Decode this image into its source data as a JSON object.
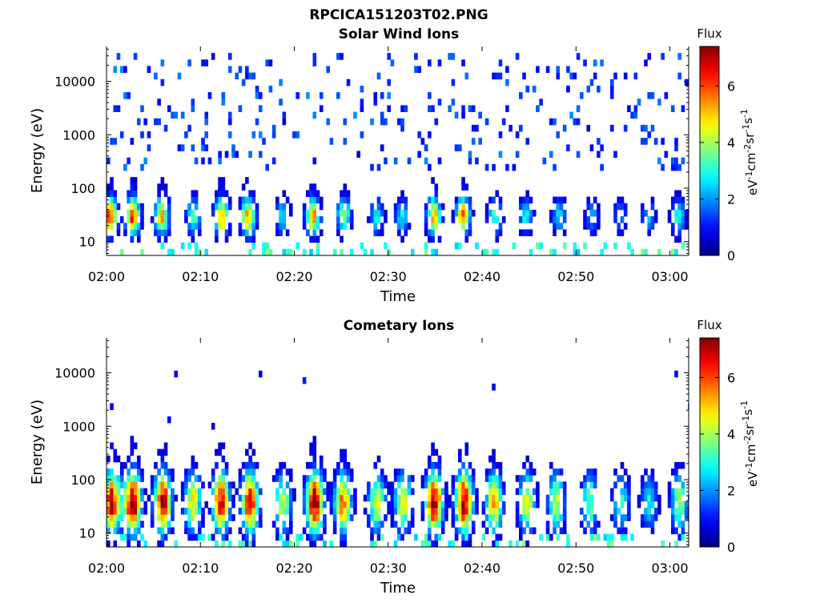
{
  "figure_title": "RPCICA151203T02.PNG",
  "chart_data": [
    {
      "type": "heatmap",
      "title": "Solar Wind Ions",
      "xlabel": "Time",
      "ylabel": "Energy (eV)",
      "x_ticks": [
        "02:00",
        "02:10",
        "02:20",
        "02:30",
        "02:40",
        "02:50",
        "03:00"
      ],
      "x_range_minutes": [
        0,
        62
      ],
      "y_scale": "log",
      "y_ticks": [
        10,
        100,
        1000,
        10000
      ],
      "y_tick_labels": [
        "10",
        "100",
        "1000",
        "10000"
      ],
      "ylim": [
        5.5,
        45000
      ],
      "colorbar": {
        "title": "Flux",
        "label_parts": [
          "eV",
          "-1",
          "cm",
          "-2",
          "sr",
          "-1",
          "s",
          "-1"
        ],
        "ticks": [
          "0",
          "2",
          "4",
          "6"
        ],
        "range": [
          0,
          7.4
        ],
        "colormap": "jet"
      },
      "bursts": [
        {
          "t": 0.2,
          "s": 1.1
        },
        {
          "t": 2.6,
          "s": 1.1
        },
        {
          "t": 5.7,
          "s": 0.9
        },
        {
          "t": 9.1,
          "s": 0.6
        },
        {
          "t": 12.1,
          "s": 1.0
        },
        {
          "t": 14.9,
          "s": 1.0
        },
        {
          "t": 18.6,
          "s": 0.5
        },
        {
          "t": 21.8,
          "s": 0.95
        },
        {
          "t": 25.1,
          "s": 0.7
        },
        {
          "t": 28.6,
          "s": 0.5
        },
        {
          "t": 31.3,
          "s": 0.5
        },
        {
          "t": 34.7,
          "s": 0.95
        },
        {
          "t": 37.8,
          "s": 1.0
        },
        {
          "t": 41.2,
          "s": 0.6
        },
        {
          "t": 44.5,
          "s": 0.5
        },
        {
          "t": 48.0,
          "s": 0.45
        },
        {
          "t": 51.5,
          "s": 0.4
        },
        {
          "t": 54.5,
          "s": 0.35
        },
        {
          "t": 57.5,
          "s": 0.4
        },
        {
          "t": 60.7,
          "s": 0.55
        }
      ],
      "background_noise": {
        "level": 1.2,
        "density": 0.14,
        "energy_range": [
          200,
          30000
        ]
      }
    },
    {
      "type": "heatmap",
      "title": "Cometary Ions",
      "xlabel": "Time",
      "ylabel": "Energy (eV)",
      "x_ticks": [
        "02:00",
        "02:10",
        "02:20",
        "02:30",
        "02:40",
        "02:50",
        "03:00"
      ],
      "x_range_minutes": [
        0,
        62
      ],
      "y_scale": "log",
      "y_ticks": [
        10,
        100,
        1000,
        10000
      ],
      "y_tick_labels": [
        "10",
        "100",
        "1000",
        "10000"
      ],
      "ylim": [
        5.5,
        45000
      ],
      "colorbar": {
        "title": "Flux",
        "label_parts": [
          "eV",
          "-1",
          "cm",
          "-2",
          "sr",
          "-1",
          "s",
          "-1"
        ],
        "ticks": [
          "0",
          "2",
          "4",
          "6"
        ],
        "range": [
          0,
          7.4
        ],
        "colormap": "jet"
      },
      "bursts": [
        {
          "t": 0.4,
          "s": 1.25
        },
        {
          "t": 2.6,
          "s": 1.35
        },
        {
          "t": 5.8,
          "s": 1.25
        },
        {
          "t": 9.0,
          "s": 0.85
        },
        {
          "t": 12.0,
          "s": 1.2
        },
        {
          "t": 15.1,
          "s": 1.25
        },
        {
          "t": 18.6,
          "s": 0.75
        },
        {
          "t": 22.0,
          "s": 1.35
        },
        {
          "t": 25.0,
          "s": 1.05
        },
        {
          "t": 28.6,
          "s": 0.8
        },
        {
          "t": 31.4,
          "s": 0.85
        },
        {
          "t": 34.7,
          "s": 1.3
        },
        {
          "t": 37.9,
          "s": 1.3
        },
        {
          "t": 41.1,
          "s": 0.95
        },
        {
          "t": 44.6,
          "s": 0.8
        },
        {
          "t": 47.7,
          "s": 0.75
        },
        {
          "t": 51.3,
          "s": 0.65
        },
        {
          "t": 54.6,
          "s": 0.55
        },
        {
          "t": 57.6,
          "s": 0.5
        },
        {
          "t": 60.8,
          "s": 0.7
        }
      ],
      "background_noise": {
        "level": 0.9,
        "density": 0.012,
        "energy_range": [
          1000,
          12000
        ]
      }
    }
  ]
}
